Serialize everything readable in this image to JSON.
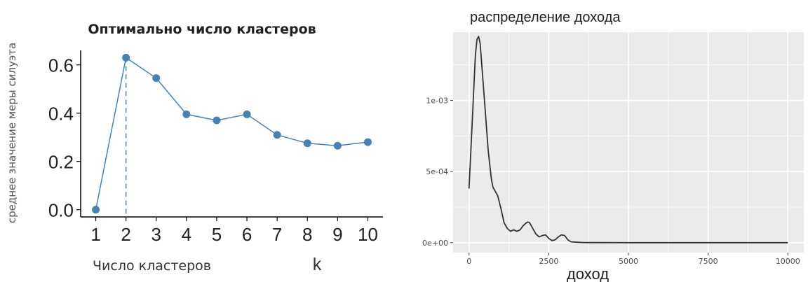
{
  "chart_data": [
    {
      "type": "line",
      "title": "Оптимально число кластеров",
      "xlabel": "Число кластеров",
      "xlabel_extra": "k",
      "ylabel": "среднее значение меры силуэта",
      "x": [
        1,
        2,
        3,
        4,
        5,
        6,
        7,
        8,
        9,
        10
      ],
      "x_ticks": [
        "1",
        "2",
        "3",
        "4",
        "5",
        "6",
        "7",
        "8",
        "9",
        "10"
      ],
      "values": [
        0.0,
        0.63,
        0.545,
        0.395,
        0.37,
        0.395,
        0.31,
        0.275,
        0.265,
        0.28
      ],
      "y_ticks": [
        "0.0",
        "0.2",
        "0.4",
        "0.6"
      ],
      "ylim": [
        -0.03,
        0.66
      ],
      "xlim": [
        0.5,
        10.5
      ],
      "optimal_k": 2,
      "color": "#4682b4",
      "grid": false
    },
    {
      "type": "area",
      "title": "распределение дохода",
      "xlabel": "доход",
      "ylabel": "",
      "x_ticks": [
        "0",
        "2500",
        "5000",
        "7500",
        "10000"
      ],
      "y_ticks": [
        "0e+00",
        "5e-04",
        "1e-03"
      ],
      "xlim": [
        -500,
        10500
      ],
      "ylim": [
        -7e-05,
        0.00148
      ],
      "grid": true,
      "panel_color": "#ebebeb",
      "line_color": "#333333",
      "x": [
        0,
        100,
        200,
        250,
        300,
        350,
        400,
        500,
        600,
        700,
        750,
        800,
        900,
        1000,
        1100,
        1200,
        1300,
        1400,
        1500,
        1600,
        1700,
        1800,
        1850,
        1900,
        2000,
        2100,
        2200,
        2300,
        2400,
        2500,
        2600,
        2700,
        2800,
        2900,
        3000,
        3100,
        3200,
        3400,
        3600,
        4000,
        5000,
        7500,
        10000
      ],
      "values": [
        0.00038,
        0.00085,
        0.00132,
        0.00143,
        0.00145,
        0.0014,
        0.00125,
        0.00095,
        0.00065,
        0.00045,
        0.00039,
        0.00037,
        0.00033,
        0.00024,
        0.00014,
        0.0001,
        8e-05,
        9e-05,
        8e-05,
        9e-05,
        0.00012,
        0.00014,
        0.000145,
        0.00014,
        0.0001,
        6e-05,
        4e-05,
        5e-05,
        5.5e-05,
        3e-05,
        1.5e-05,
        2e-05,
        4e-05,
        5.5e-05,
        5e-05,
        2e-05,
        6e-06,
        3e-06,
        1e-06,
        5e-07,
        0.0,
        0.0,
        0.0
      ]
    }
  ]
}
